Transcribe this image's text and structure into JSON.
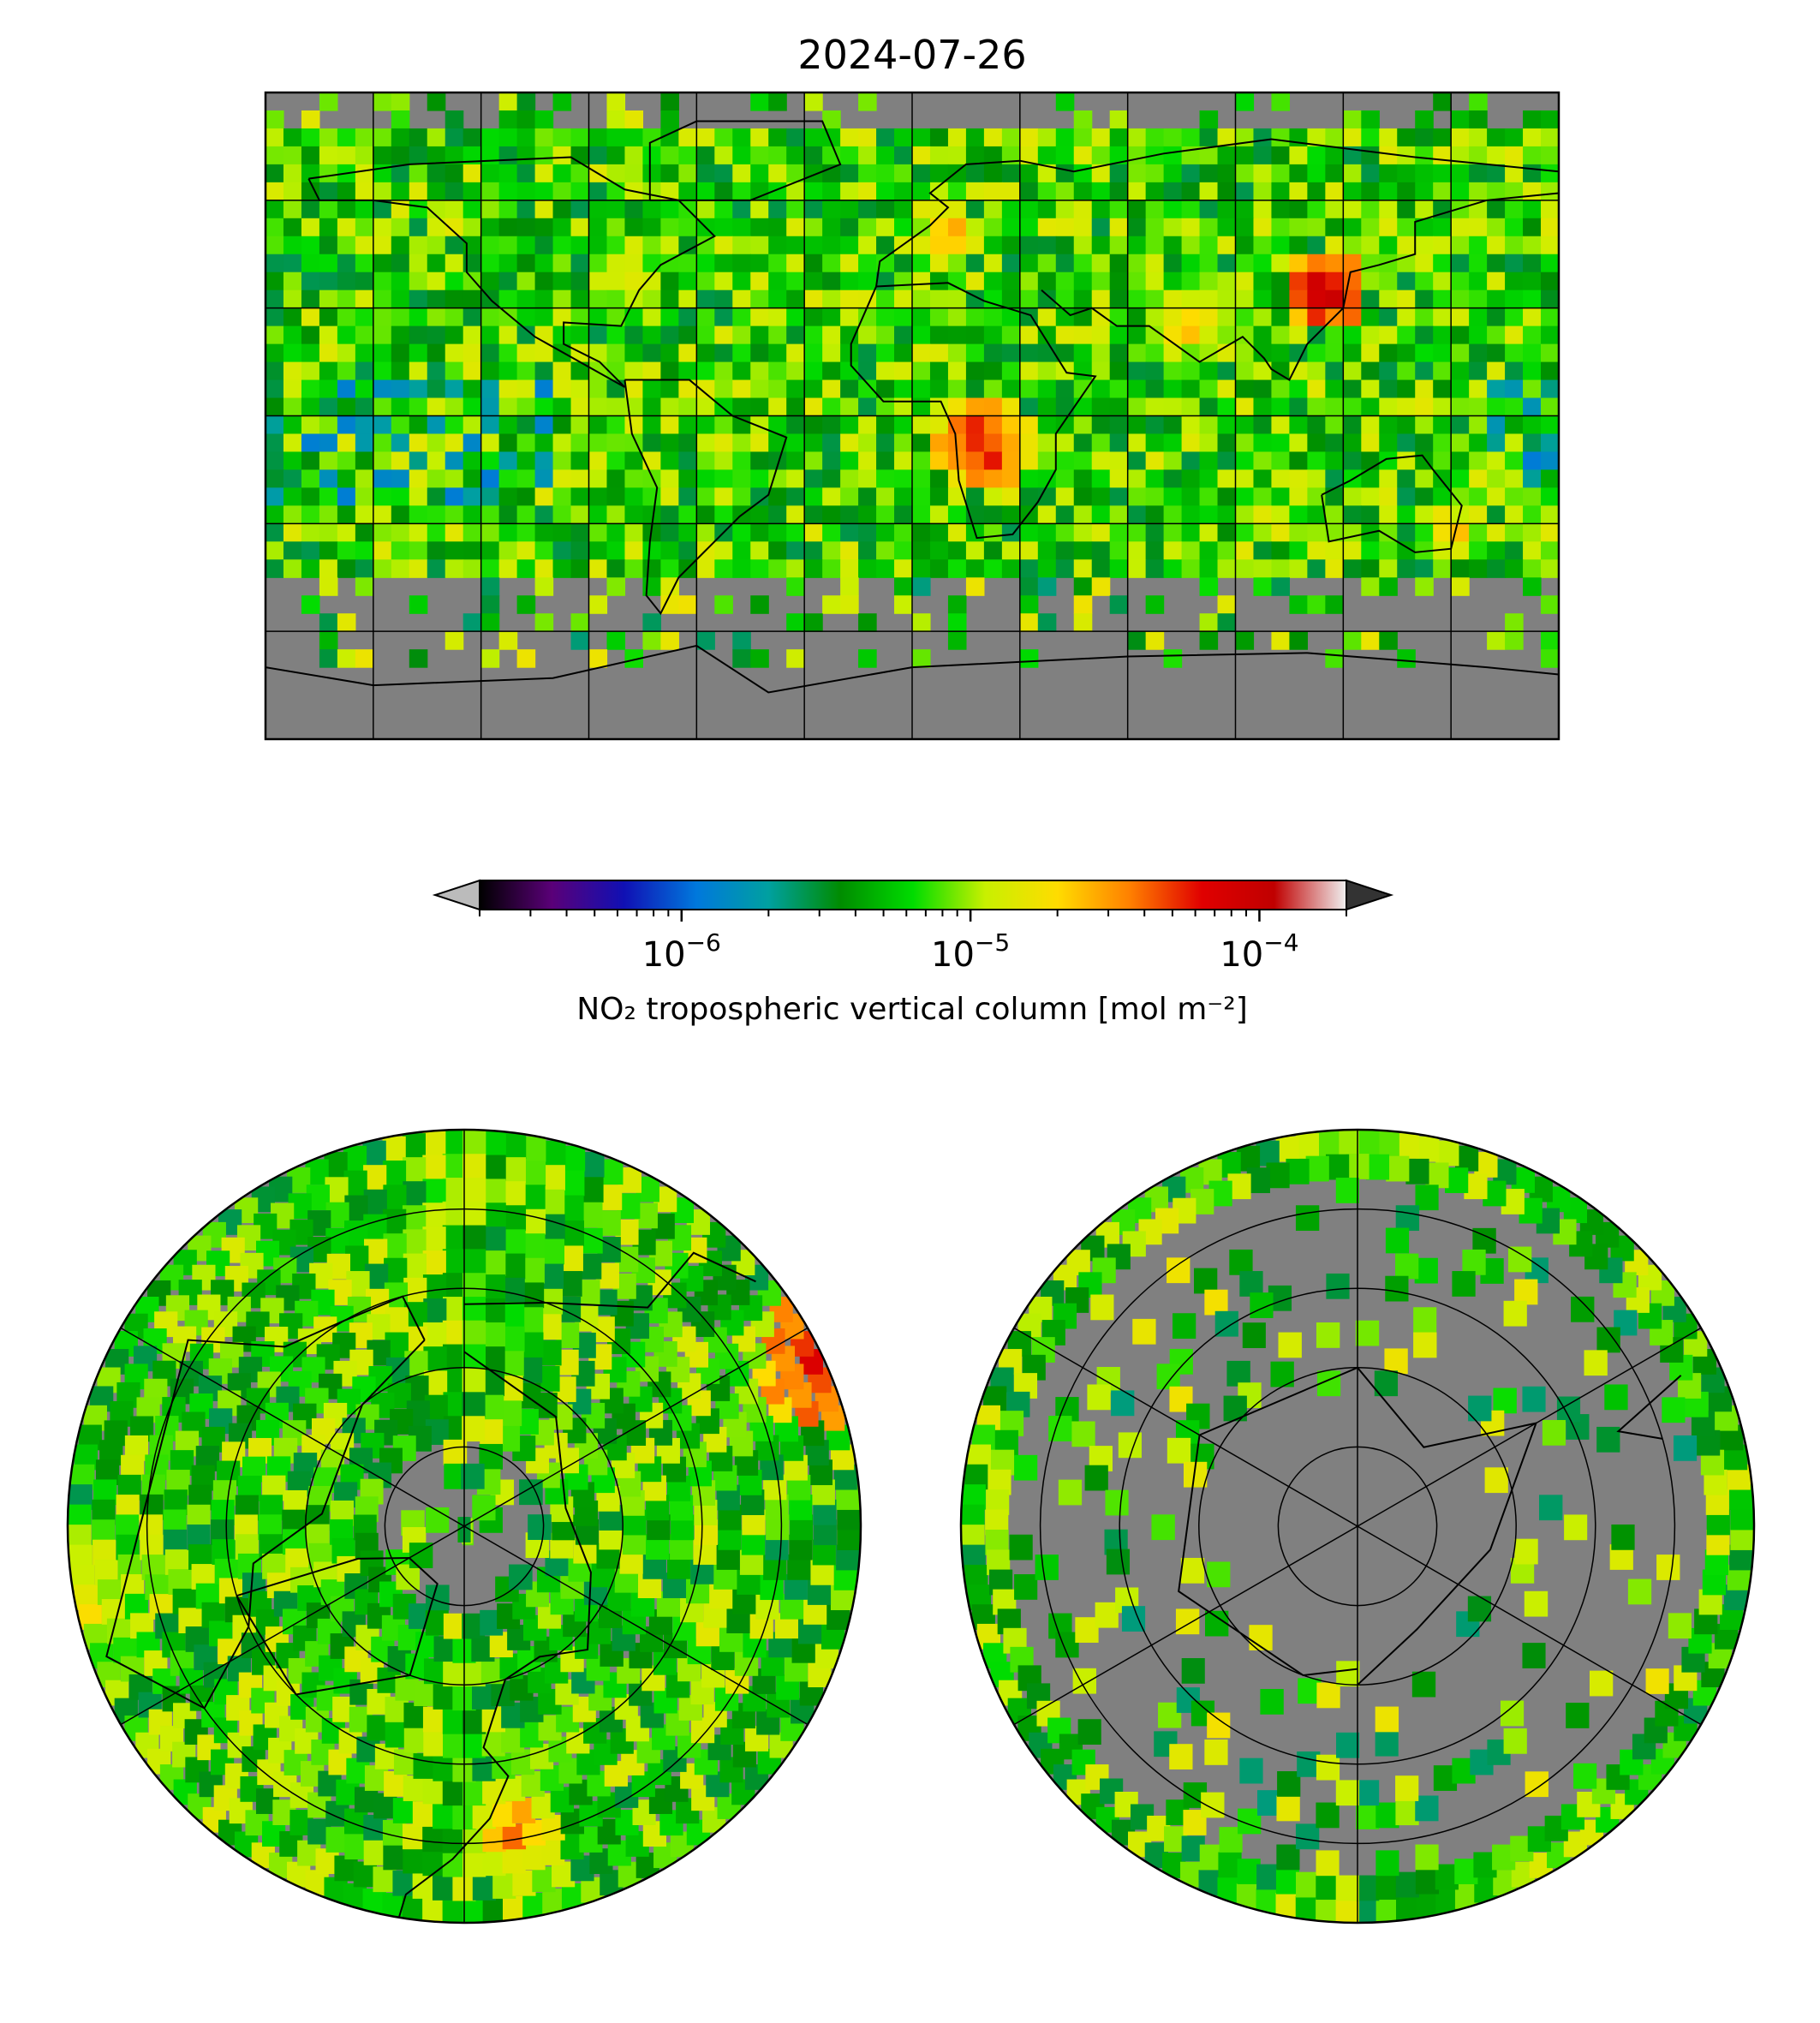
{
  "figure": {
    "title": "2024-07-26"
  },
  "panels": [
    {
      "name": "global-map",
      "projection": "equirectangular",
      "extent": "global"
    },
    {
      "name": "arctic-map",
      "projection": "polar-stereographic",
      "hemisphere": "north"
    },
    {
      "name": "antarctic-map",
      "projection": "polar-stereographic",
      "hemisphere": "south"
    }
  ],
  "colorbar": {
    "label": "NO₂ tropospheric vertical column [mol m⁻²]",
    "scale": "log",
    "range": [
      2e-07,
      0.0002
    ],
    "extend": "both",
    "ticks": [
      {
        "value": 1e-06,
        "base": "10",
        "exp": "−6"
      },
      {
        "value": 1e-05,
        "base": "10",
        "exp": "−5"
      },
      {
        "value": 0.0001,
        "base": "10",
        "exp": "−4"
      }
    ],
    "colors": [
      "#000000",
      "#5a0078",
      "#1010b4",
      "#0078dc",
      "#00a0a0",
      "#008c00",
      "#00dc00",
      "#c8f000",
      "#ffdc00",
      "#ff8000",
      "#e00000",
      "#c00000",
      "#f0f0f0"
    ],
    "under_color": "#bbbbbb",
    "over_color": "#333333"
  },
  "map_style": {
    "missing_color": "#808080",
    "gridline_color": "#000000",
    "gridlines": true
  }
}
